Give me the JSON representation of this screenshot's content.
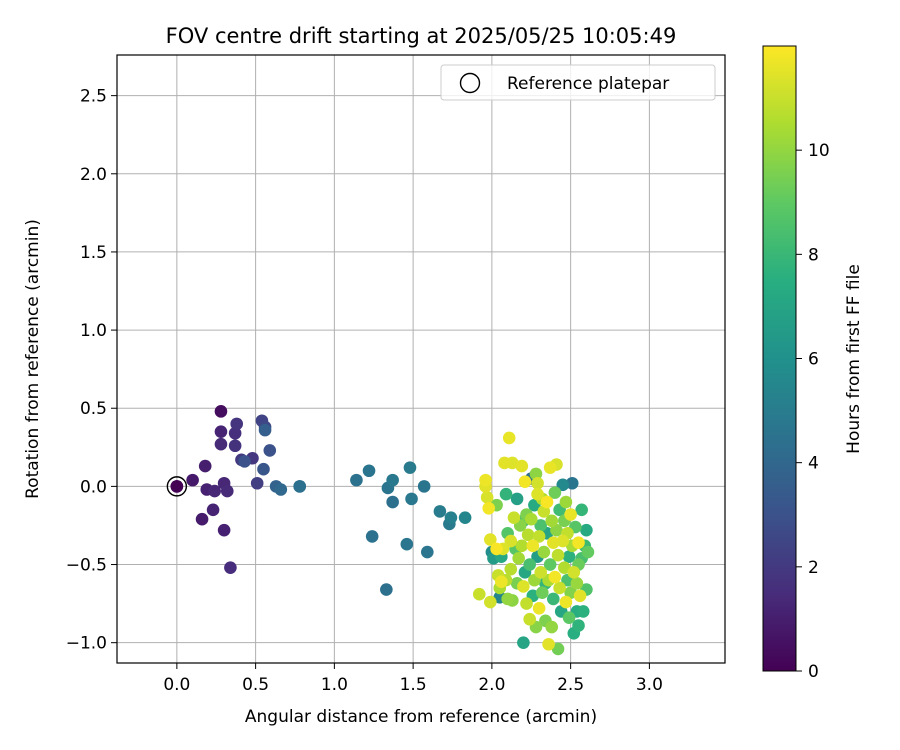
{
  "chart_data": {
    "type": "scatter",
    "title": "FOV centre drift starting at 2025/05/25 10:05:49",
    "xlabel": "Angular distance from reference (arcmin)",
    "ylabel": "Rotation from reference (arcmin)",
    "xlim": [
      -0.38,
      3.48
    ],
    "ylim": [
      -1.13,
      2.76
    ],
    "xticks": [
      0.0,
      0.5,
      1.0,
      1.5,
      2.0,
      2.5,
      3.0
    ],
    "xtick_labels": [
      "0.0",
      "0.5",
      "1.0",
      "1.5",
      "2.0",
      "2.5",
      "3.0"
    ],
    "yticks": [
      -1.0,
      -0.5,
      0.0,
      0.5,
      1.0,
      1.5,
      2.0,
      2.5
    ],
    "ytick_labels": [
      "−1.0",
      "−0.5",
      "0.0",
      "0.5",
      "1.0",
      "1.5",
      "2.0",
      "2.5"
    ],
    "grid": true,
    "legend": {
      "position": "top-right",
      "entries": [
        "Reference platepar"
      ]
    },
    "colorbar": {
      "label": "Hours from first FF file",
      "colormap": "viridis",
      "range": [
        0,
        12
      ],
      "ticks": [
        0,
        2,
        4,
        6,
        8,
        10
      ],
      "tick_labels": [
        "0",
        "2",
        "4",
        "6",
        "8",
        "10"
      ]
    },
    "reference_point": {
      "x": 0.0,
      "y": 0.0,
      "hours": 0.0
    },
    "series": [
      {
        "name": "Reference platepar",
        "points": [
          {
            "x": 0.0,
            "y": 0.0,
            "h": 0.1
          },
          {
            "x": 0.1,
            "y": 0.04,
            "h": 0.8
          },
          {
            "x": 0.18,
            "y": 0.13,
            "h": 1.0
          },
          {
            "x": 0.19,
            "y": -0.02,
            "h": 1.1
          },
          {
            "x": 0.16,
            "y": -0.21,
            "h": 0.9
          },
          {
            "x": 0.23,
            "y": -0.15,
            "h": 1.2
          },
          {
            "x": 0.24,
            "y": -0.03,
            "h": 1.3
          },
          {
            "x": 0.28,
            "y": 0.48,
            "h": 0.4
          },
          {
            "x": 0.28,
            "y": 0.35,
            "h": 1.2
          },
          {
            "x": 0.28,
            "y": 0.27,
            "h": 1.4
          },
          {
            "x": 0.3,
            "y": 0.02,
            "h": 1.3
          },
          {
            "x": 0.3,
            "y": -0.28,
            "h": 1.1
          },
          {
            "x": 0.32,
            "y": -0.03,
            "h": 1.4
          },
          {
            "x": 0.34,
            "y": -0.52,
            "h": 1.5
          },
          {
            "x": 0.37,
            "y": 0.34,
            "h": 1.6
          },
          {
            "x": 0.38,
            "y": 0.4,
            "h": 1.8
          },
          {
            "x": 0.37,
            "y": 0.26,
            "h": 1.7
          },
          {
            "x": 0.41,
            "y": 0.17,
            "h": 2.0
          },
          {
            "x": 0.43,
            "y": 0.16,
            "h": 3.0
          },
          {
            "x": 0.48,
            "y": 0.18,
            "h": 1.9
          },
          {
            "x": 0.51,
            "y": 0.02,
            "h": 2.2
          },
          {
            "x": 0.54,
            "y": 0.42,
            "h": 2.4
          },
          {
            "x": 0.56,
            "y": 0.38,
            "h": 2.6
          },
          {
            "x": 0.55,
            "y": 0.11,
            "h": 3.2
          },
          {
            "x": 0.56,
            "y": 0.36,
            "h": 3.6
          },
          {
            "x": 0.59,
            "y": 0.23,
            "h": 3.0
          },
          {
            "x": 0.63,
            "y": 0.0,
            "h": 3.8
          },
          {
            "x": 0.66,
            "y": -0.02,
            "h": 4.1
          },
          {
            "x": 0.78,
            "y": 0.0,
            "h": 4.4
          },
          {
            "x": 0.78,
            "y": 0.0,
            "h": 4.2
          },
          {
            "x": 1.14,
            "y": 0.04,
            "h": 4.5
          },
          {
            "x": 1.22,
            "y": 0.1,
            "h": 4.6
          },
          {
            "x": 1.24,
            "y": -0.32,
            "h": 4.5
          },
          {
            "x": 1.33,
            "y": -0.66,
            "h": 4.4
          },
          {
            "x": 1.34,
            "y": -0.01,
            "h": 4.6
          },
          {
            "x": 1.37,
            "y": 0.04,
            "h": 4.8
          },
          {
            "x": 1.37,
            "y": -0.1,
            "h": 4.4
          },
          {
            "x": 1.46,
            "y": -0.37,
            "h": 4.7
          },
          {
            "x": 1.48,
            "y": 0.12,
            "h": 4.9
          },
          {
            "x": 1.49,
            "y": -0.08,
            "h": 4.8
          },
          {
            "x": 1.57,
            "y": 0.0,
            "h": 4.6
          },
          {
            "x": 1.59,
            "y": -0.42,
            "h": 4.7
          },
          {
            "x": 1.67,
            "y": -0.16,
            "h": 5.0
          },
          {
            "x": 1.73,
            "y": -0.24,
            "h": 4.9
          },
          {
            "x": 1.74,
            "y": -0.2,
            "h": 5.2
          },
          {
            "x": 1.83,
            "y": -0.2,
            "h": 5.4
          },
          {
            "x": 1.96,
            "y": 0.0,
            "h": 11.5
          },
          {
            "x": 1.96,
            "y": 0.04,
            "h": 11.7
          },
          {
            "x": 1.97,
            "y": -0.07,
            "h": 11.3
          },
          {
            "x": 1.98,
            "y": -0.14,
            "h": 11.8
          },
          {
            "x": 1.92,
            "y": -0.69,
            "h": 11.0
          },
          {
            "x": 1.99,
            "y": -0.74,
            "h": 11.2
          },
          {
            "x": 1.99,
            "y": -0.34,
            "h": 11.5
          },
          {
            "x": 2.0,
            "y": -0.42,
            "h": 5.8
          },
          {
            "x": 2.01,
            "y": -0.46,
            "h": 6.5
          },
          {
            "x": 2.03,
            "y": -0.12,
            "h": 9.6
          },
          {
            "x": 2.03,
            "y": -0.4,
            "h": 11.9
          },
          {
            "x": 2.04,
            "y": -0.57,
            "h": 11.0
          },
          {
            "x": 2.05,
            "y": -0.65,
            "h": 10.5
          },
          {
            "x": 2.05,
            "y": -0.71,
            "h": 5.4
          },
          {
            "x": 2.06,
            "y": -0.45,
            "h": 7.2
          },
          {
            "x": 2.06,
            "y": -0.61,
            "h": 11.7
          },
          {
            "x": 2.07,
            "y": -0.4,
            "h": 11.4
          },
          {
            "x": 2.08,
            "y": 0.15,
            "h": 11.5
          },
          {
            "x": 2.09,
            "y": -0.05,
            "h": 7.8
          },
          {
            "x": 2.1,
            "y": -0.3,
            "h": 8.7
          },
          {
            "x": 2.1,
            "y": -0.72,
            "h": 10.0
          },
          {
            "x": 2.11,
            "y": 0.31,
            "h": 11.6
          },
          {
            "x": 2.12,
            "y": -0.53,
            "h": 10.7
          },
          {
            "x": 2.13,
            "y": 0.15,
            "h": 11.4
          },
          {
            "x": 2.13,
            "y": -0.73,
            "h": 9.9
          },
          {
            "x": 2.14,
            "y": -0.2,
            "h": 11.0
          },
          {
            "x": 2.15,
            "y": -0.4,
            "h": 8.8
          },
          {
            "x": 2.16,
            "y": -0.08,
            "h": 6.8
          },
          {
            "x": 2.17,
            "y": -0.46,
            "h": 10.3
          },
          {
            "x": 2.18,
            "y": -0.25,
            "h": 9.8
          },
          {
            "x": 2.19,
            "y": 0.13,
            "h": 11.5
          },
          {
            "x": 2.19,
            "y": -0.38,
            "h": 10.6
          },
          {
            "x": 2.2,
            "y": -0.64,
            "h": 11.4
          },
          {
            "x": 2.2,
            "y": -1.0,
            "h": 7.0
          },
          {
            "x": 2.21,
            "y": 0.03,
            "h": 11.8
          },
          {
            "x": 2.21,
            "y": -0.55,
            "h": 7.1
          },
          {
            "x": 2.22,
            "y": -0.18,
            "h": 9.6
          },
          {
            "x": 2.22,
            "y": -0.75,
            "h": 10.9
          },
          {
            "x": 2.23,
            "y": -0.31,
            "h": 10.7
          },
          {
            "x": 2.24,
            "y": -0.5,
            "h": 8.4
          },
          {
            "x": 2.25,
            "y": 0.05,
            "h": 4.3
          },
          {
            "x": 2.25,
            "y": -0.21,
            "h": 10.4
          },
          {
            "x": 2.26,
            "y": -0.7,
            "h": 7.6
          },
          {
            "x": 2.26,
            "y": -0.38,
            "h": 11.7
          },
          {
            "x": 2.27,
            "y": -0.12,
            "h": 7.3
          },
          {
            "x": 2.27,
            "y": -0.6,
            "h": 10.2
          },
          {
            "x": 2.28,
            "y": 0.08,
            "h": 9.9
          },
          {
            "x": 2.29,
            "y": -0.45,
            "h": 6.6
          },
          {
            "x": 2.29,
            "y": -0.05,
            "h": 11.4
          },
          {
            "x": 2.3,
            "y": -0.32,
            "h": 10.9
          },
          {
            "x": 2.3,
            "y": -0.78,
            "h": 11.7
          },
          {
            "x": 2.31,
            "y": -0.25,
            "h": 8.5
          },
          {
            "x": 2.31,
            "y": -0.55,
            "h": 11.1
          },
          {
            "x": 2.32,
            "y": -0.08,
            "h": 10.6
          },
          {
            "x": 2.32,
            "y": -0.68,
            "h": 9.3
          },
          {
            "x": 2.33,
            "y": -0.16,
            "h": 11.0
          },
          {
            "x": 2.33,
            "y": -0.42,
            "h": 10.1
          },
          {
            "x": 2.34,
            "y": -0.86,
            "h": 9.6
          },
          {
            "x": 2.35,
            "y": -0.3,
            "h": 7.0
          },
          {
            "x": 2.35,
            "y": -0.1,
            "h": 11.9
          },
          {
            "x": 2.36,
            "y": -0.6,
            "h": 10.5
          },
          {
            "x": 2.36,
            "y": -1.01,
            "h": 11.5
          },
          {
            "x": 2.37,
            "y": 0.12,
            "h": 11.6
          },
          {
            "x": 2.37,
            "y": -0.5,
            "h": 9.0
          },
          {
            "x": 2.38,
            "y": -0.22,
            "h": 10.3
          },
          {
            "x": 2.38,
            "y": -0.9,
            "h": 10.0
          },
          {
            "x": 2.39,
            "y": -0.36,
            "h": 11.5
          },
          {
            "x": 2.39,
            "y": -0.72,
            "h": 8.0
          },
          {
            "x": 2.4,
            "y": -0.04,
            "h": 9.3
          },
          {
            "x": 2.4,
            "y": -0.58,
            "h": 11.8
          },
          {
            "x": 2.41,
            "y": 0.14,
            "h": 11.3
          },
          {
            "x": 2.41,
            "y": -0.28,
            "h": 9.9
          },
          {
            "x": 2.42,
            "y": -0.44,
            "h": 10.8
          },
          {
            "x": 2.42,
            "y": -1.04,
            "h": 9.4
          },
          {
            "x": 2.43,
            "y": -0.15,
            "h": 8.2
          },
          {
            "x": 2.43,
            "y": -0.65,
            "h": 11.0
          },
          {
            "x": 2.44,
            "y": -0.8,
            "h": 7.1
          },
          {
            "x": 2.45,
            "y": -0.35,
            "h": 11.4
          },
          {
            "x": 2.45,
            "y": 0.01,
            "h": 5.6
          },
          {
            "x": 2.46,
            "y": -0.52,
            "h": 10.6
          },
          {
            "x": 2.46,
            "y": -0.22,
            "h": 9.5
          },
          {
            "x": 2.47,
            "y": -0.74,
            "h": 11.7
          },
          {
            "x": 2.47,
            "y": -0.1,
            "h": 10.2
          },
          {
            "x": 2.48,
            "y": -0.6,
            "h": 8.5
          },
          {
            "x": 2.48,
            "y": -0.3,
            "h": 10.9
          },
          {
            "x": 2.49,
            "y": -0.45,
            "h": 7.6
          },
          {
            "x": 2.49,
            "y": -0.84,
            "h": 8.9
          },
          {
            "x": 2.5,
            "y": -0.18,
            "h": 11.6
          },
          {
            "x": 2.5,
            "y": -0.68,
            "h": 9.7
          },
          {
            "x": 2.51,
            "y": 0.02,
            "h": 4.6
          },
          {
            "x": 2.51,
            "y": -0.38,
            "h": 10.4
          },
          {
            "x": 2.52,
            "y": -0.55,
            "h": 11.2
          },
          {
            "x": 2.52,
            "y": -0.94,
            "h": 7.5
          },
          {
            "x": 2.53,
            "y": -0.26,
            "h": 8.8
          },
          {
            "x": 2.54,
            "y": -0.62,
            "h": 10.1
          },
          {
            "x": 2.54,
            "y": -0.8,
            "h": 7.4
          },
          {
            "x": 2.55,
            "y": -0.36,
            "h": 11.8
          },
          {
            "x": 2.55,
            "y": -0.5,
            "h": 9.2
          },
          {
            "x": 2.55,
            "y": -0.89,
            "h": 7.7
          },
          {
            "x": 2.56,
            "y": -0.7,
            "h": 11.5
          },
          {
            "x": 2.57,
            "y": -0.15,
            "h": 7.9
          },
          {
            "x": 2.57,
            "y": -0.46,
            "h": 8.4
          },
          {
            "x": 2.58,
            "y": -0.8,
            "h": 7.6
          },
          {
            "x": 2.59,
            "y": -0.38,
            "h": 8.1
          },
          {
            "x": 2.6,
            "y": -0.28,
            "h": 7.3
          },
          {
            "x": 2.6,
            "y": -0.66,
            "h": 8.6
          },
          {
            "x": 2.61,
            "y": -0.42,
            "h": 9.1
          },
          {
            "x": 2.2,
            "y": -0.22,
            "h": 8.2
          },
          {
            "x": 2.24,
            "y": -0.85,
            "h": 11.0
          },
          {
            "x": 2.28,
            "y": -0.9,
            "h": 9.8
          },
          {
            "x": 2.34,
            "y": -0.62,
            "h": 7.9
          },
          {
            "x": 2.29,
            "y": 0.02,
            "h": 11.2
          },
          {
            "x": 2.16,
            "y": -0.62,
            "h": 9.5
          },
          {
            "x": 2.12,
            "y": -0.35,
            "h": 11.3
          },
          {
            "x": 2.09,
            "y": -0.6,
            "h": 10.7
          }
        ]
      }
    ]
  }
}
